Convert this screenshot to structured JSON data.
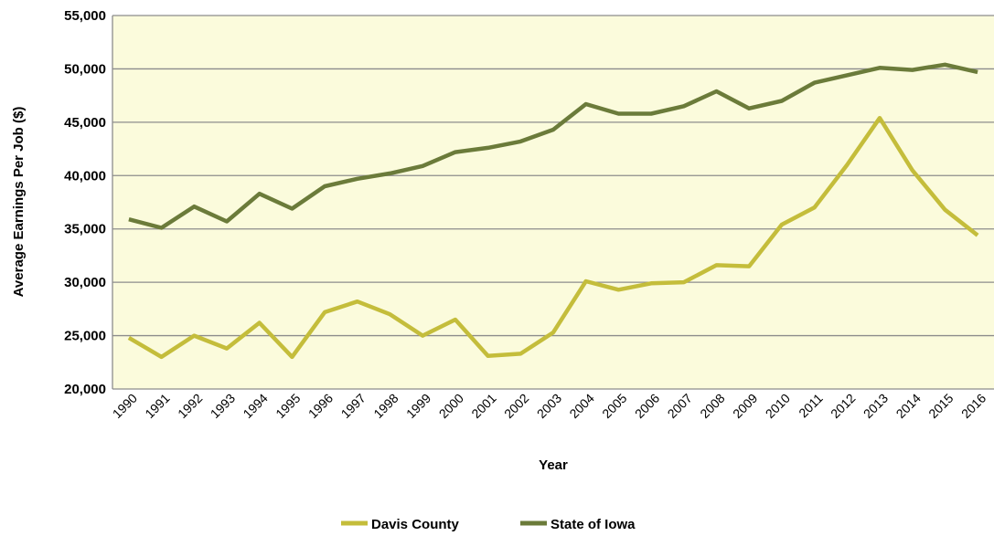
{
  "chart_data": {
    "type": "line",
    "title": "",
    "xlabel": "Year",
    "ylabel": "Average Earnings Per Job ($)",
    "ylim": [
      20000,
      55000
    ],
    "ytick_step": 5000,
    "ytick_labels": [
      "20,000",
      "25,000",
      "30,000",
      "35,000",
      "40,000",
      "45,000",
      "50,000",
      "55,000"
    ],
    "grid": true,
    "plot_background": "#fbfbdc",
    "legend_position": "bottom",
    "categories": [
      "1990",
      "1991",
      "1992",
      "1993",
      "1994",
      "1995",
      "1996",
      "1997",
      "1998",
      "1999",
      "2000",
      "2001",
      "2002",
      "2003",
      "2004",
      "2005",
      "2006",
      "2007",
      "2008",
      "2009",
      "2010",
      "2011",
      "2012",
      "2013",
      "2014",
      "2015",
      "2016"
    ],
    "series": [
      {
        "name": "Davis County",
        "color": "#c4bd3b",
        "values": [
          24800,
          23000,
          25000,
          23800,
          26200,
          23000,
          27200,
          28200,
          27000,
          25000,
          26500,
          23100,
          23300,
          25300,
          30100,
          29300,
          29900,
          30000,
          31600,
          31500,
          35400,
          37000,
          41000,
          45400,
          40500,
          36800,
          34400
        ]
      },
      {
        "name": "State of Iowa",
        "color": "#6b7b3a",
        "values": [
          35900,
          35100,
          37100,
          35700,
          38300,
          36900,
          39000,
          39700,
          40200,
          40900,
          42200,
          42600,
          43200,
          44300,
          46700,
          45800,
          45800,
          46500,
          47900,
          46300,
          47000,
          48700,
          49400,
          50100,
          49900,
          50400,
          49700
        ]
      }
    ]
  }
}
